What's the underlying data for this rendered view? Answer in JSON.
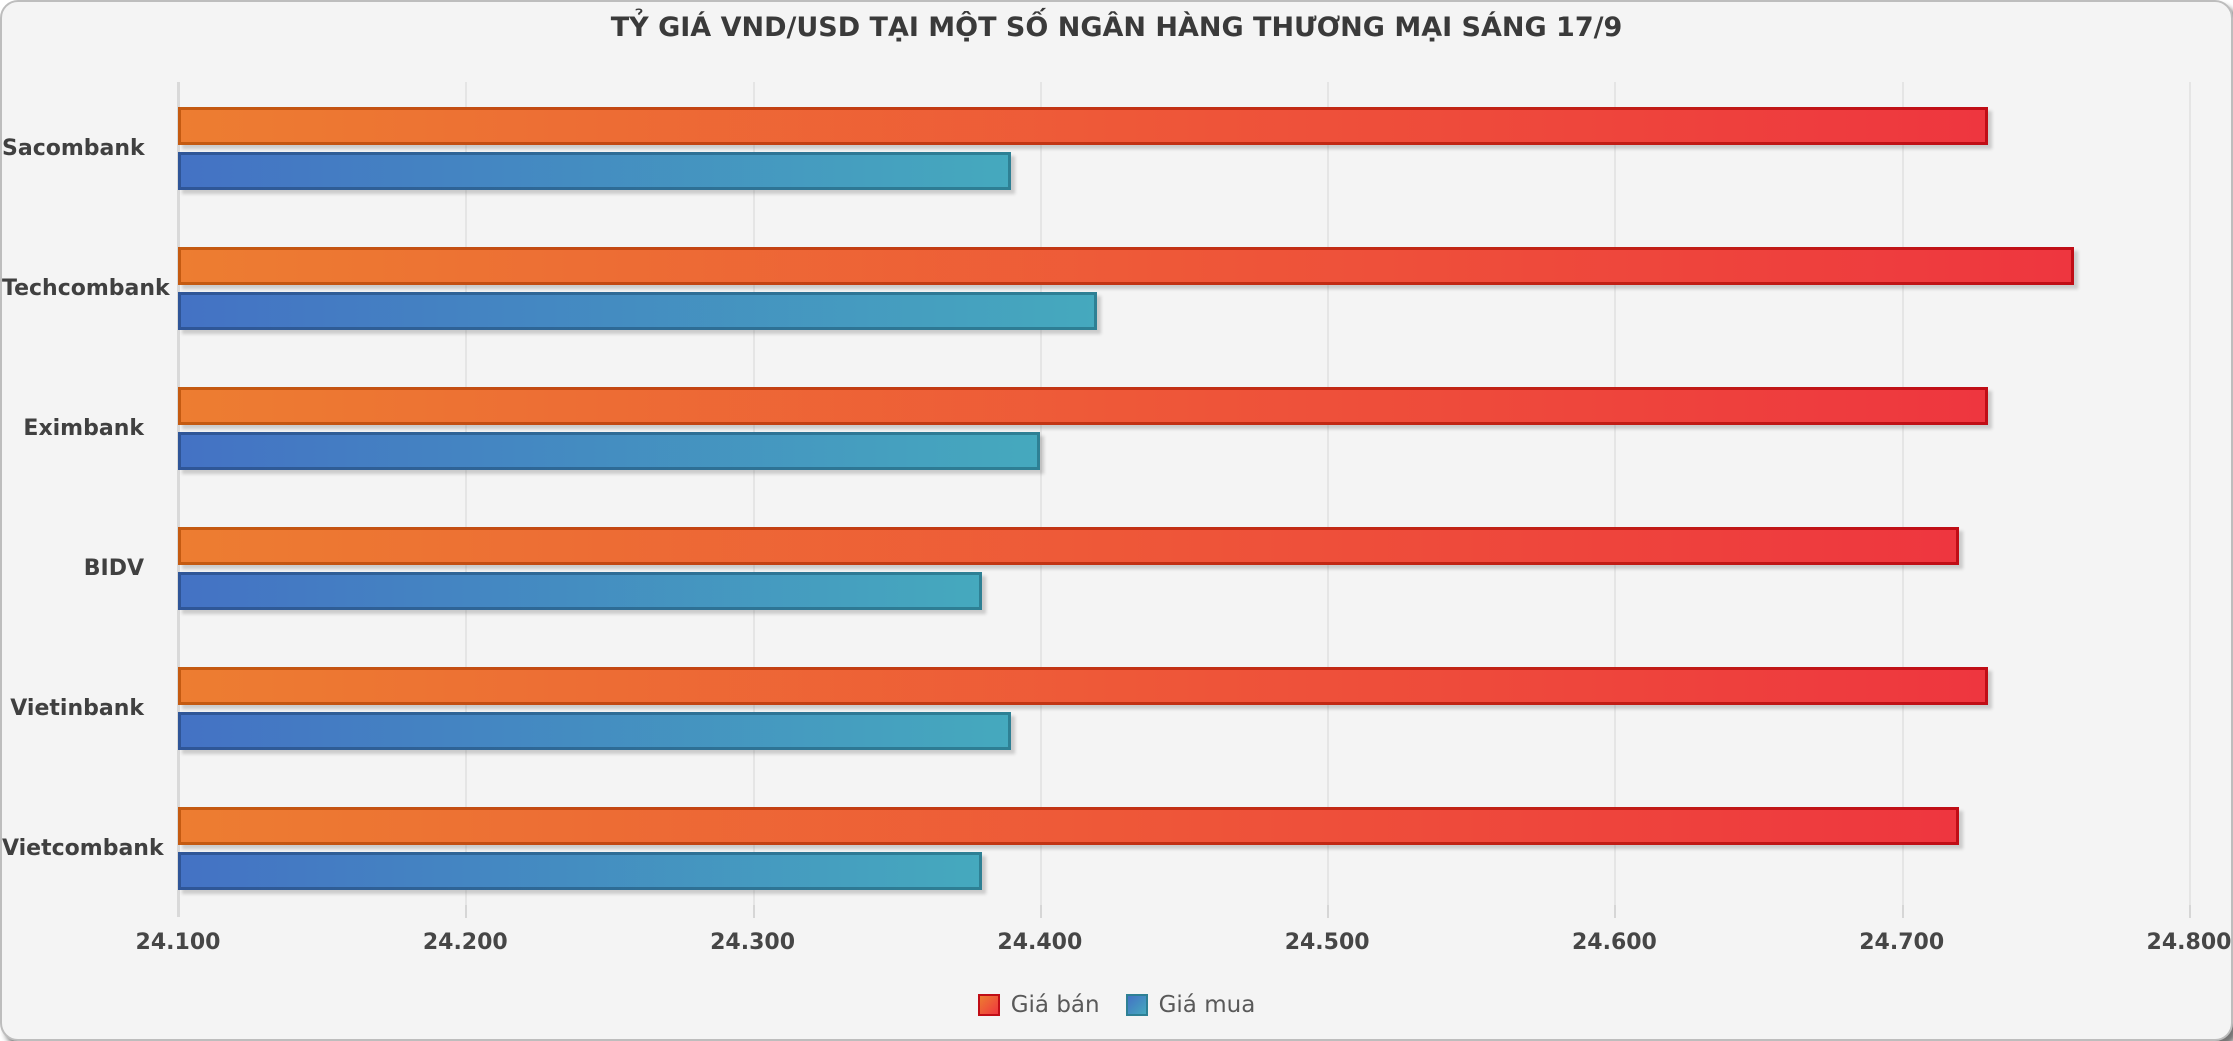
{
  "card": {
    "background": "#f4f4f4",
    "border_color": "#bdbdbd",
    "gridline_color": "#e5e5e5",
    "axis_color": "#d9d9d9"
  },
  "chart_data": {
    "type": "bar",
    "orientation": "horizontal",
    "title": "TỶ GIÁ VND/USD TẠI MỘT SỐ NGÂN HÀNG THƯƠNG MẠI SÁNG 17/9",
    "categories": [
      "Sacombank",
      "Techcombank",
      "Eximbank",
      "BIDV",
      "Vietinbank",
      "Vietcombank"
    ],
    "series": [
      {
        "name": "Giá bán",
        "values": [
          24730,
          24760,
          24730,
          24720,
          24730,
          24720
        ],
        "fill_start": "#ED7D31",
        "fill_end": "#EE363F",
        "edge_start": "#C45A11",
        "edge_end": "#C00D16"
      },
      {
        "name": "Giá mua",
        "values": [
          24390,
          24420,
          24400,
          24380,
          24390,
          24380
        ],
        "fill_start": "#4472C4",
        "fill_end": "#45A9BE",
        "edge_start": "#2F5597",
        "edge_end": "#2E8094"
      }
    ],
    "xlim": [
      24100,
      24800
    ],
    "x_tick_step": 100,
    "x_tick_labels": [
      "24.100",
      "24.200",
      "24.300",
      "24.400",
      "24.500",
      "24.600",
      "24.700",
      "24.800"
    ],
    "grid": true,
    "legend_position": "bottom"
  }
}
